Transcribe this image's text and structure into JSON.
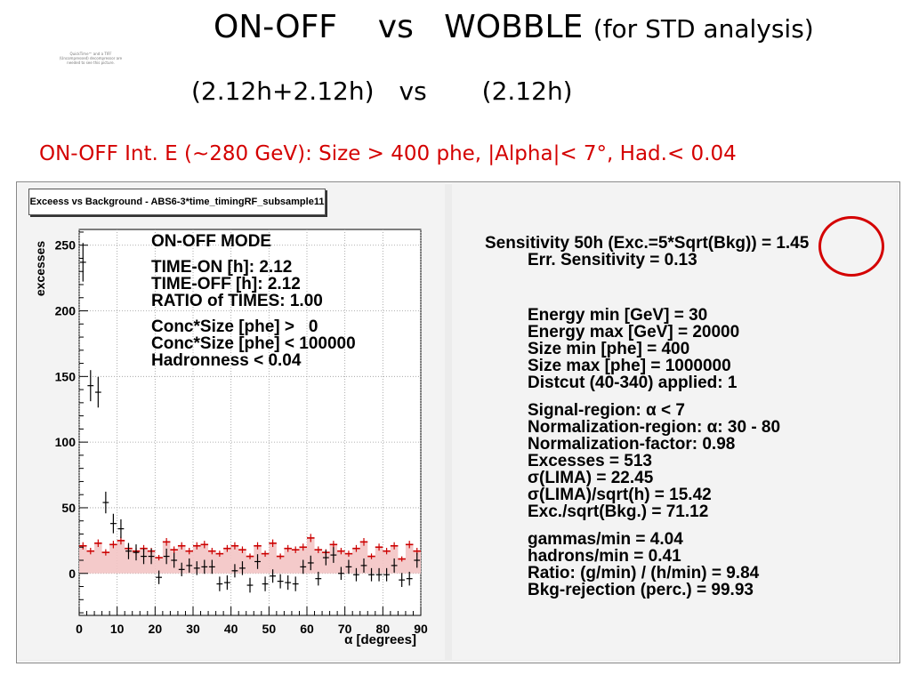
{
  "header": {
    "title_main": "ON-OFF    vs   WOBBLE",
    "title_sub": "(for STD analysis)",
    "subtitle_left": "(2.12h+2.12h)",
    "subtitle_vs": "vs",
    "subtitle_right": "(2.12h)",
    "cuts": "ON-OFF  Int. E (~280 GeV): Size > 400 phe, |Alpha|< 7°, Had.< 0.04",
    "quicktime_note": "QuickTime™ and a TIFF (Uncompressed) decompressor are needed to see this picture."
  },
  "histogram": {
    "title": "Exceess vs Background - ABS6-3*time_timingRF_subsample11"
  },
  "mode_box": {
    "lines": [
      "ON-OFF MODE",
      "",
      "TIME-ON [h]: 2.12",
      "TIME-OFF [h]: 2.12",
      "RATIO of TIMES: 1.00",
      "",
      "Conc*Size [phe] >   0",
      "Conc*Size [phe] < 100000",
      "Hadronness < 0.04"
    ]
  },
  "stats_box": {
    "sensitivity": "Sensitivity 50h (Exc.=5*Sqrt(Bkg)) = 1.45",
    "err_sensitivity": "Err. Sensitivity = 0.13",
    "energy_min": "Energy min [GeV] =  30",
    "energy_max": "Energy max [GeV] = 20000",
    "size_min": "Size min [phe] = 400",
    "size_max": "Size max [phe] = 1000000",
    "distcut": "Distcut (40-340) applied:   1",
    "signal_region": "Signal-region: α <   7",
    "norm_region": "Normalization-region: α: 30 -  80",
    "norm_factor": "Normalization-factor: 0.98",
    "excesses": "Excesses =  513",
    "sigma_lima": "σ(LIMA)  = 22.45",
    "sigma_lima_sqrt": "σ(LIMA)/sqrt(h) = 15.42",
    "exc_sqrt_bkg": "Exc./sqrt(Bkg.) = 71.12",
    "gammas_min": "gammas/min = 4.04",
    "hadrons_min": "hadrons/min = 0.41",
    "ratio": "Ratio: (g/min) / (h/min) = 9.84",
    "bkg_rejection": "Bkg-rejection (perc.) = 99.93"
  },
  "colors": {
    "accent_red": "#d40000",
    "bkg_fill": "#f3c4c4",
    "bkg_line": "#cc0000"
  },
  "chart_data": {
    "type": "bar",
    "title": "Exceess vs Background - ABS6-3*time_timingRF_subsample11",
    "xlabel": "α [degrees]",
    "ylabel": "excesses",
    "xlim": [
      0,
      90
    ],
    "ylim": [
      -32,
      262
    ],
    "xticks": [
      0,
      10,
      20,
      30,
      40,
      50,
      60,
      70,
      80,
      90
    ],
    "yticks": [
      0,
      50,
      100,
      150,
      200,
      250
    ],
    "grid": true,
    "bin_width": 2,
    "series": [
      {
        "name": "excesses",
        "style": "errorbars-black",
        "x": [
          1,
          3,
          5,
          7,
          9,
          11,
          13,
          15,
          17,
          19,
          21,
          23,
          25,
          27,
          29,
          31,
          33,
          35,
          37,
          39,
          41,
          43,
          45,
          47,
          49,
          51,
          53,
          55,
          57,
          59,
          61,
          63,
          65,
          67,
          69,
          71,
          73,
          75,
          77,
          79,
          81,
          83,
          85,
          87,
          89
        ],
        "values": [
          237,
          143,
          138,
          54,
          38,
          34,
          17,
          16,
          13,
          13,
          -3,
          13,
          10,
          3,
          6,
          4,
          5,
          5,
          -8,
          -7,
          2,
          4,
          -9,
          9,
          -8,
          -2,
          -6,
          -7,
          -8,
          5,
          8,
          -4,
          12,
          14,
          0,
          5,
          -1,
          6,
          -1,
          -1,
          -1,
          6,
          -5,
          -4,
          10
        ]
      },
      {
        "name": "background",
        "style": "step-red-filled",
        "x": [
          1,
          3,
          5,
          7,
          9,
          11,
          13,
          15,
          17,
          19,
          21,
          23,
          25,
          27,
          29,
          31,
          33,
          35,
          37,
          39,
          41,
          43,
          45,
          47,
          49,
          51,
          53,
          55,
          57,
          59,
          61,
          63,
          65,
          67,
          69,
          71,
          73,
          75,
          77,
          79,
          81,
          83,
          85,
          87,
          89
        ],
        "values": [
          21,
          17,
          23,
          16,
          22,
          25,
          19,
          17,
          19,
          17,
          12,
          24,
          18,
          21,
          17,
          21,
          22,
          17,
          15,
          19,
          21,
          18,
          13,
          21,
          15,
          23,
          13,
          19,
          18,
          20,
          27,
          18,
          16,
          22,
          17,
          15,
          19,
          24,
          13,
          20,
          17,
          21,
          11,
          22,
          17
        ]
      }
    ]
  }
}
